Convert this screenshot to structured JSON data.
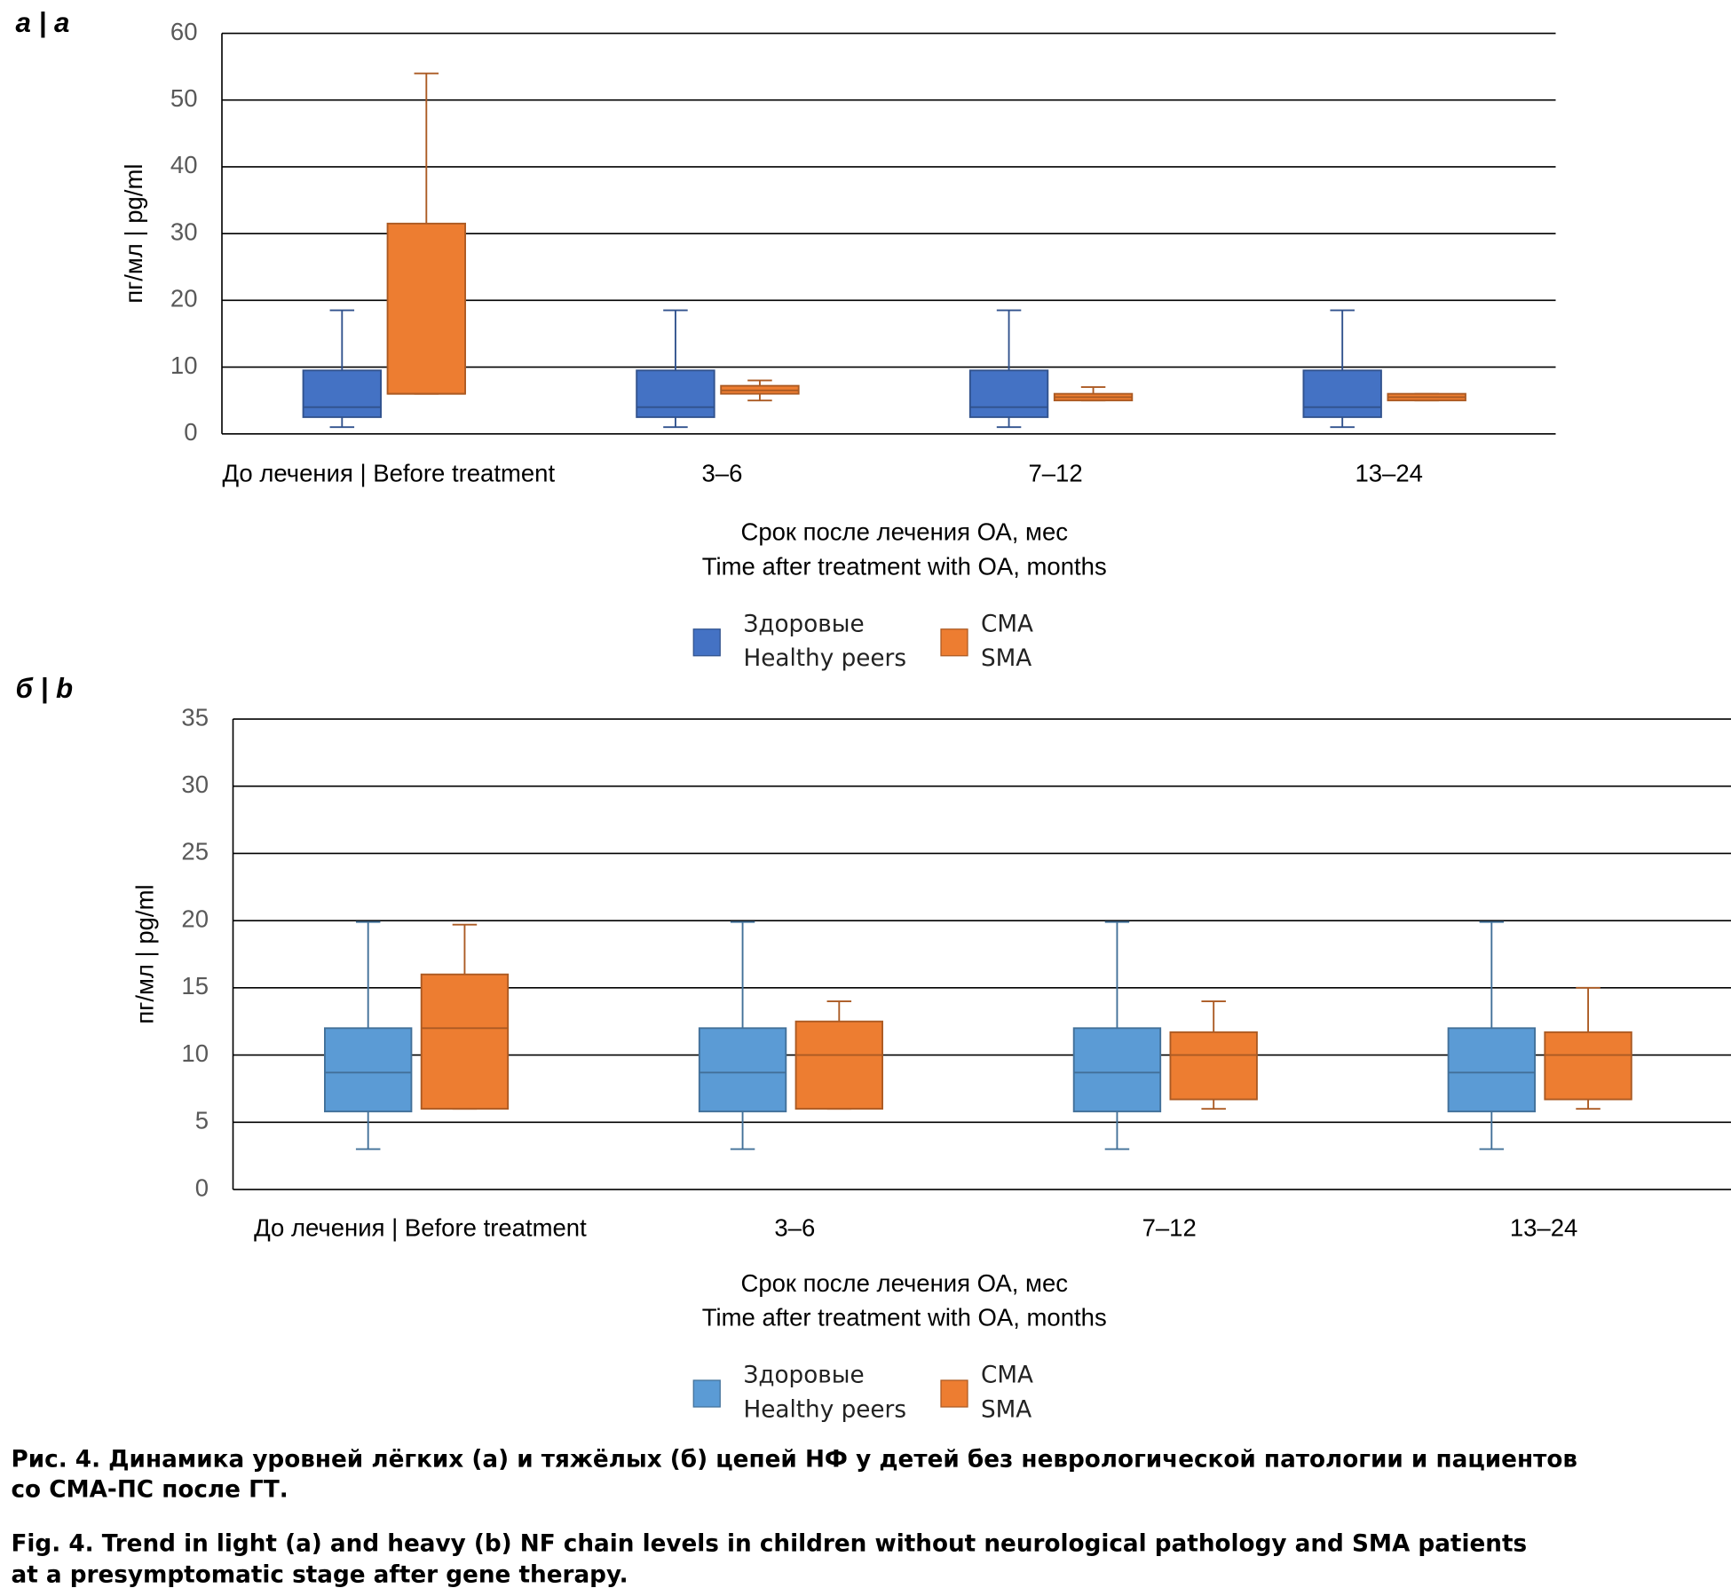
{
  "chart_data": [
    {
      "type": "box",
      "panel_label": "а | a",
      "y_label": "пг/мл | pg/ml",
      "x_label": [
        "Срок после лечения ОА, мес",
        "Time after treatment with OA, months"
      ],
      "categories": [
        "До лечения | Before treatment",
        "3–6",
        "7–12",
        "13–24"
      ],
      "ylim": [
        0,
        60
      ],
      "yticks": [
        0,
        10,
        20,
        30,
        40,
        50,
        60
      ],
      "grid": true,
      "series": [
        {
          "name": [
            "Здоровые",
            "Healthy peers"
          ],
          "color": "#4472c4",
          "values": [
            {
              "min": 1,
              "q1": 2.5,
              "median": 4,
              "q3": 9.5,
              "max": 18.5
            },
            {
              "min": 1,
              "q1": 2.5,
              "median": 4,
              "q3": 9.5,
              "max": 18.5
            },
            {
              "min": 1,
              "q1": 2.5,
              "median": 4,
              "q3": 9.5,
              "max": 18.5
            },
            {
              "min": 1,
              "q1": 2.5,
              "median": 4,
              "q3": 9.5,
              "max": 18.5
            }
          ]
        },
        {
          "name": [
            "СМА",
            "SMA"
          ],
          "color": "#ed7d31",
          "values": [
            {
              "min": 6,
              "q1": 6,
              "median": 6,
              "q3": 31.5,
              "max": 54
            },
            {
              "min": 5,
              "q1": 6,
              "median": 6.5,
              "q3": 7.2,
              "max": 8
            },
            {
              "min": 5,
              "q1": 5,
              "median": 5.5,
              "q3": 6,
              "max": 7
            },
            {
              "min": 5,
              "q1": 5,
              "median": 5.5,
              "q3": 6,
              "max": 6
            }
          ]
        }
      ]
    },
    {
      "type": "box",
      "panel_label": "б | b",
      "y_label": "пг/мл | pg/ml",
      "x_label": [
        "Срок после лечения ОА, мес",
        "Time after treatment with OA, months"
      ],
      "categories": [
        "До лечения | Before treatment",
        "3–6",
        "7–12",
        "13–24"
      ],
      "ylim": [
        0,
        35
      ],
      "yticks": [
        0,
        5,
        10,
        15,
        20,
        25,
        30,
        35
      ],
      "grid": true,
      "series": [
        {
          "name": [
            "Здоровые",
            "Healthy peers"
          ],
          "color": "#5b9bd5",
          "values": [
            {
              "min": 3,
              "q1": 5.8,
              "median": 8.7,
              "q3": 12,
              "max": 19.9
            },
            {
              "min": 3,
              "q1": 5.8,
              "median": 8.7,
              "q3": 12,
              "max": 19.9
            },
            {
              "min": 3,
              "q1": 5.8,
              "median": 8.7,
              "q3": 12,
              "max": 19.9
            },
            {
              "min": 3,
              "q1": 5.8,
              "median": 8.7,
              "q3": 12,
              "max": 19.9
            }
          ]
        },
        {
          "name": [
            "СМА",
            "SMA"
          ],
          "color": "#ed7d31",
          "values": [
            {
              "min": 6,
              "q1": 6,
              "median": 12,
              "q3": 16,
              "max": 19.7
            },
            {
              "min": 6,
              "q1": 6,
              "median": 10,
              "q3": 12.5,
              "max": 14
            },
            {
              "min": 6,
              "q1": 6.7,
              "median": 10,
              "q3": 11.7,
              "max": 14
            },
            {
              "min": 6,
              "q1": 6.7,
              "median": 10,
              "q3": 11.7,
              "max": 15
            }
          ]
        }
      ]
    }
  ],
  "caption_ru": [
    "Рис. 4. Динамика уровней лёгких (а) и тяжёлых (б) цепей НФ у детей без неврологической патологии и пациентов",
    "со СМА-ПС после ГТ."
  ],
  "caption_en": [
    "Fig. 4. Trend in light (a) and heavy (b) NF chain levels in children without neurological pathology and SMA patients",
    "at a presymptomatic stage after gene therapy."
  ]
}
